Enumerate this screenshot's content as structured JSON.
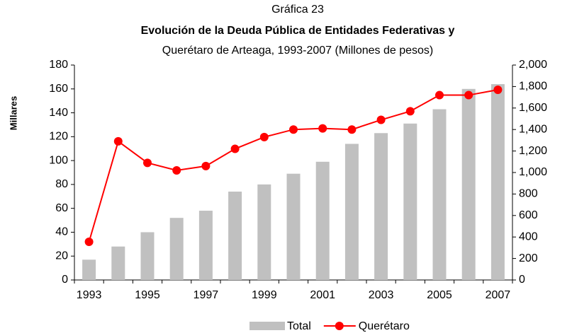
{
  "chart_data": {
    "type": "bar-line",
    "title": "Gráfica 23",
    "subtitle": "Evolución de la Deuda Pública de Entidades Federativas y",
    "subtitle2": "Querétaro de Arteaga, 1993-2007 (Millones de pesos)",
    "y_label": "Millares",
    "categories": [
      "1993",
      null,
      "1995",
      null,
      "1997",
      null,
      "1999",
      null,
      "2001",
      null,
      "2003",
      null,
      "2005",
      null,
      "2007"
    ],
    "series": [
      {
        "name": "Total",
        "type": "bar",
        "color": "#c0c0c0",
        "axis": "y",
        "values": [
          17,
          28,
          40,
          52,
          58,
          74,
          80,
          89,
          99,
          114,
          123,
          131,
          143,
          160,
          164
        ]
      },
      {
        "name": "Querétaro",
        "type": "line",
        "color": "#ff0000",
        "axis": "y2",
        "values": [
          355,
          1290,
          1090,
          1020,
          1060,
          1220,
          1330,
          1400,
          1410,
          1400,
          1490,
          1570,
          1720,
          1720,
          1770
        ]
      }
    ],
    "ylim": [
      0,
      180
    ],
    "yticks": [
      0,
      20,
      40,
      60,
      80,
      100,
      120,
      140,
      160,
      180
    ],
    "y2lim": [
      0,
      2000
    ],
    "y2ticks": [
      0,
      200,
      400,
      600,
      800,
      {
        "value": 1000,
        "label": "1,000"
      },
      {
        "value": 1200,
        "label": "1,200"
      },
      {
        "value": 1400,
        "label": "1,400"
      },
      {
        "value": 1600,
        "label": "1,600"
      },
      {
        "value": 1800,
        "label": "1,800"
      },
      {
        "value": 2000,
        "label": "2,000"
      }
    ],
    "legend": "bottom"
  }
}
